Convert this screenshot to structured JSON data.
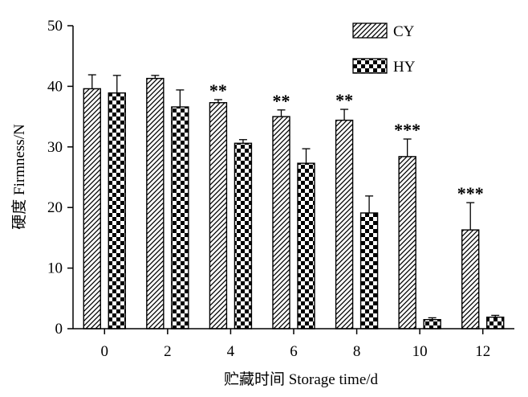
{
  "chart_data": {
    "type": "bar",
    "title": "",
    "xlabel": "贮藏时间 Storage time/d",
    "ylabel": "硬度 Firmness/N",
    "ylim": [
      0,
      50
    ],
    "yticks": [
      0,
      10,
      20,
      30,
      40,
      50
    ],
    "categories": [
      "0",
      "2",
      "4",
      "6",
      "8",
      "10",
      "12"
    ],
    "legend_position": "top-right",
    "grid": false,
    "series": [
      {
        "name": "CY",
        "pattern": "diagonal-hatch",
        "values": [
          39.6,
          41.3,
          37.3,
          35.0,
          34.4,
          28.4,
          16.3
        ],
        "errors": [
          2.3,
          0.5,
          0.5,
          1.1,
          1.8,
          2.9,
          4.5
        ]
      },
      {
        "name": "HY",
        "pattern": "checkerboard",
        "values": [
          38.9,
          36.6,
          30.6,
          27.3,
          19.1,
          1.5,
          1.9
        ],
        "errors": [
          2.9,
          2.8,
          0.6,
          2.4,
          2.8,
          0.3,
          0.3
        ]
      }
    ],
    "significance": [
      "",
      "",
      "**",
      "**",
      "**",
      "***",
      "***"
    ]
  }
}
